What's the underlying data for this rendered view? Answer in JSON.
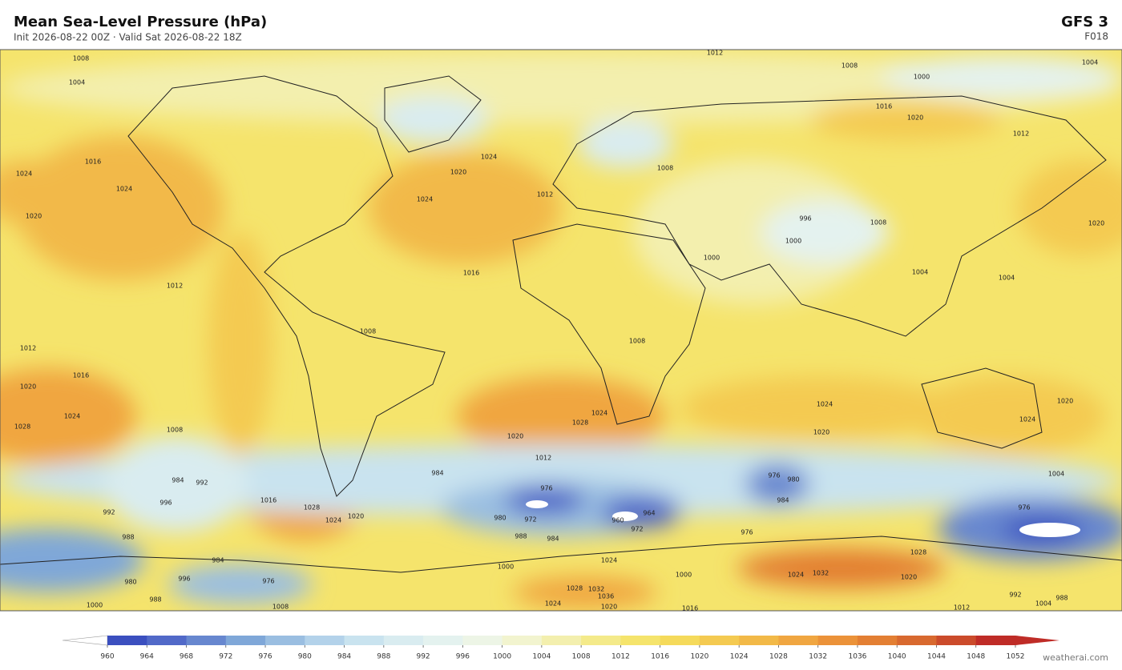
{
  "header": {
    "title": "Mean Sea-Level Pressure  (hPa)",
    "subtitle": "Init 2026-08-22 00Z  ·  Valid Sat 2026-08-22 18Z",
    "model": "GFS  3",
    "forecast_hour": "F018"
  },
  "colorbar": {
    "ticks": [
      960,
      964,
      968,
      972,
      976,
      980,
      984,
      988,
      992,
      996,
      1000,
      1004,
      1008,
      1012,
      1016,
      1020,
      1024,
      1028,
      1032,
      1036,
      1040,
      1044,
      1048,
      1052
    ],
    "colors": [
      "#3b4fbf",
      "#5169c8",
      "#6787cf",
      "#7fa7d8",
      "#9abee1",
      "#b3d2ea",
      "#c9e3ef",
      "#d9ecf0",
      "#e4f2ef",
      "#edf5e6",
      "#f2f4cf",
      "#f3efae",
      "#f4ea8a",
      "#f5e46c",
      "#f5da5b",
      "#f4ca51",
      "#f2b948",
      "#f0a641",
      "#eb9239",
      "#e37f33",
      "#d8692f",
      "#cb4b2b",
      "#bf2c27"
    ],
    "under_color": "#ffffff",
    "over_color": "#bf2c27"
  },
  "contour_labels": [
    1008,
    1012,
    1008,
    1004,
    1000,
    1004,
    1016,
    1024,
    1024,
    1020,
    1024,
    1024,
    1020,
    1016,
    1012,
    1012,
    1016,
    1020,
    1024,
    1028,
    1008,
    984,
    992,
    996,
    992,
    988,
    1016,
    1028,
    1024,
    1020,
    1028,
    1024,
    1020,
    1012,
    1024,
    1020,
    1024,
    1020,
    1004,
    984,
    976,
    980,
    972,
    988,
    984,
    960,
    964,
    972,
    976,
    980,
    984,
    976,
    976,
    1028,
    1024,
    1032,
    1020,
    1000,
    1000,
    1024,
    1028,
    1032,
    1036,
    1024,
    1020,
    1016,
    1012,
    1004,
    992,
    988,
    980,
    976,
    996,
    984,
    988,
    1000,
    1008,
    1004,
    1008,
    996,
    1000,
    1000,
    1004,
    1008,
    1008,
    1008,
    1012,
    1016,
    1020,
    1020,
    1012
  ],
  "footer": "weatherai.com"
}
